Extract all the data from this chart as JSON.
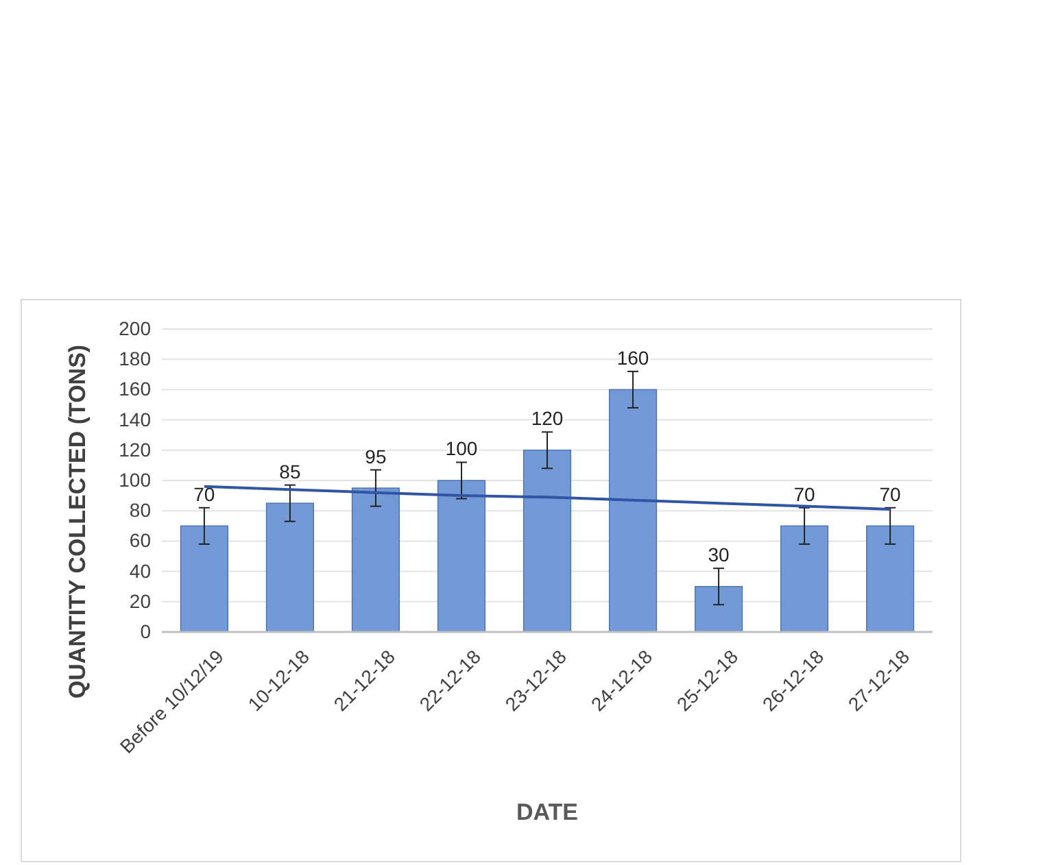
{
  "chart_data": {
    "type": "bar",
    "xlabel": "DATE",
    "ylabel": "QUANTITY COLLECTED (TONS)",
    "categories": [
      "Before 10/12/19",
      "10-12-18",
      "21-12-18",
      "22-12-18",
      "23-12-18",
      "24-12-18",
      "25-12-18",
      "26-12-18",
      "27-12-18"
    ],
    "series": [
      {
        "color": "#7399d6",
        "values": [
          70,
          85,
          95,
          100,
          120,
          160,
          30,
          70,
          70
        ],
        "value_labels": [
          "70",
          "85",
          "95",
          "100",
          "120",
          "160",
          "30",
          "70",
          "70"
        ],
        "errors": [
          12,
          12,
          12,
          12,
          12,
          12,
          12,
          12,
          12
        ]
      },
      {
        "type": "line",
        "color": "#2f55a4",
        "values": [
          96,
          94,
          92,
          90,
          89,
          87,
          85,
          83,
          81
        ]
      }
    ],
    "ylim": [
      0,
      200
    ],
    "yticks": [
      0,
      20,
      40,
      60,
      80,
      100,
      120,
      140,
      160,
      180,
      200
    ],
    "grid": "y"
  }
}
